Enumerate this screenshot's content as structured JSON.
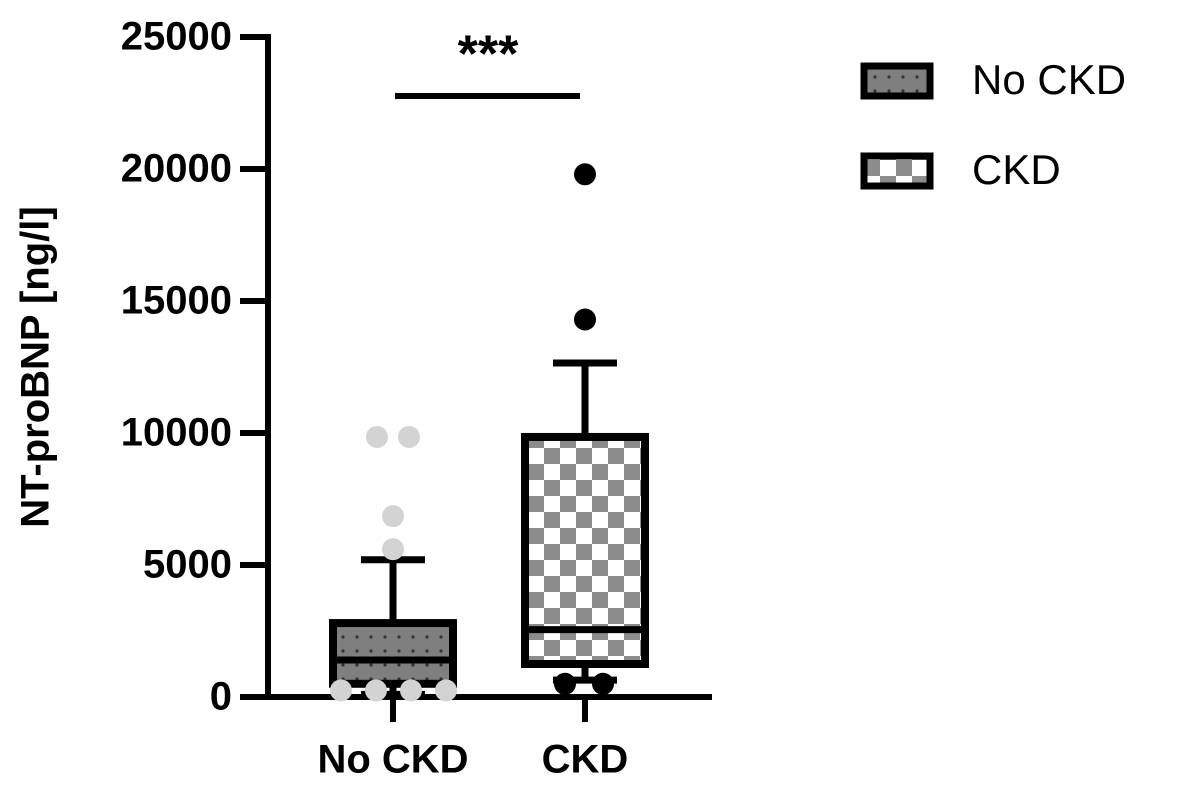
{
  "chart_data": {
    "type": "box",
    "ylabel": "NT-proBNP [ng/l]",
    "categories": [
      "No CKD",
      "CKD"
    ],
    "ylim": [
      0,
      25000
    ],
    "yticks": [
      0,
      5000,
      10000,
      15000,
      20000,
      25000
    ],
    "legend": "top-right",
    "annotation": "***",
    "series": [
      {
        "name": "No CKD",
        "color": "#7f7f7f",
        "pattern": "dots",
        "outlier_color": "#d3d3d3",
        "min": 100,
        "q1": 500,
        "median": 1400,
        "q3": 2800,
        "max": 5200,
        "outliers": [
          9850,
          9850,
          6850,
          5600,
          250,
          250,
          250,
          250
        ]
      },
      {
        "name": "CKD",
        "color": "#8c8c8c",
        "pattern": "checker",
        "outlier_color": "#000000",
        "min": 640,
        "q1": 1250,
        "median": 2550,
        "q3": 9850,
        "max": 12650,
        "outliers": [
          19800,
          14300,
          500,
          500
        ]
      }
    ]
  }
}
